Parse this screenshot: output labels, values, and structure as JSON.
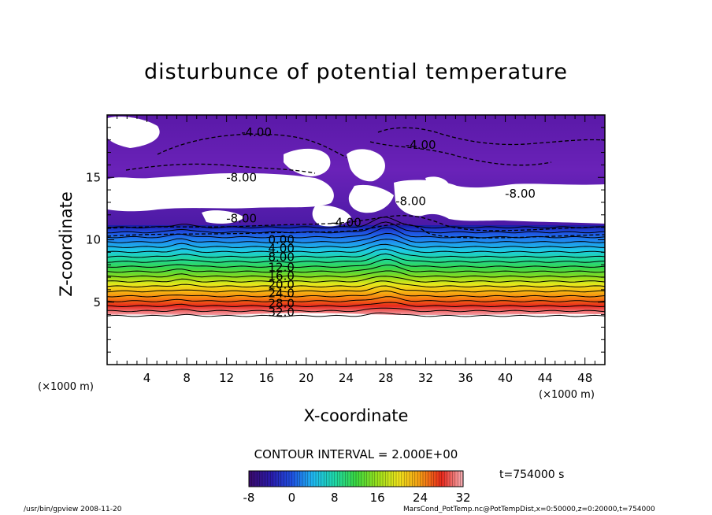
{
  "chart_data": {
    "type": "heatmap",
    "title": "disturbunce of potential temperature",
    "xlabel": "X-coordinate",
    "ylabel": "Z-coordinate",
    "x_unit": "(×1000 m)",
    "z_unit": "(×1000 m)",
    "xlim": [
      0,
      50
    ],
    "ylim": [
      0,
      20
    ],
    "x_ticks": [
      "4",
      "8",
      "12",
      "16",
      "20",
      "24",
      "28",
      "32",
      "36",
      "40",
      "44",
      "48"
    ],
    "y_ticks": [
      "5",
      "10",
      "15"
    ],
    "contour_interval_label": "CONTOUR INTERVAL = 2.000E+00",
    "contour_interval": 2.0,
    "colorbar": {
      "min": -8,
      "max": 32,
      "tick_labels": [
        "-8",
        "0",
        "8",
        "16",
        "24",
        "32"
      ]
    },
    "contour_labels": [
      {
        "text": "-4.00",
        "x": 15.0,
        "z": 18.6
      },
      {
        "text": "-4.00",
        "x": 31.5,
        "z": 17.6
      },
      {
        "text": "-8.00",
        "x": 13.5,
        "z": 15.0
      },
      {
        "text": "-8.00",
        "x": 30.5,
        "z": 13.1
      },
      {
        "text": "-8.00",
        "x": 41.5,
        "z": 13.7
      },
      {
        "text": "-8.00",
        "x": 13.5,
        "z": 11.7
      },
      {
        "text": "-4.00",
        "x": 24.0,
        "z": 11.4
      },
      {
        "text": "0.00",
        "x": 17.5,
        "z": 10.0
      },
      {
        "text": "4.00",
        "x": 17.5,
        "z": 9.3
      },
      {
        "text": "8.00",
        "x": 17.5,
        "z": 8.6
      },
      {
        "text": "12.0",
        "x": 17.5,
        "z": 7.8
      },
      {
        "text": "16.0",
        "x": 17.5,
        "z": 7.1
      },
      {
        "text": "20.0",
        "x": 17.5,
        "z": 6.4
      },
      {
        "text": "24.0",
        "x": 17.5,
        "z": 5.7
      },
      {
        "text": "28.0",
        "x": 17.5,
        "z": 4.9
      },
      {
        "text": "32.0",
        "x": 17.5,
        "z": 4.2
      }
    ],
    "field_summary": {
      "bottom_of_colored_field_z": 3.9,
      "stratified_layer_z": [
        3.9,
        11.0
      ],
      "value_at_bottom": 32,
      "value_at_z10": 0,
      "upper_layer_min": -8,
      "bump_center_x": 28
    },
    "time_label": "t=754000 s"
  },
  "footer": {
    "left": "/usr/bin/gpview   2008-11-20",
    "right": "MarsCond_PotTemp.nc@PotTempDist,x=0:50000,z=0:20000,t=754000"
  }
}
